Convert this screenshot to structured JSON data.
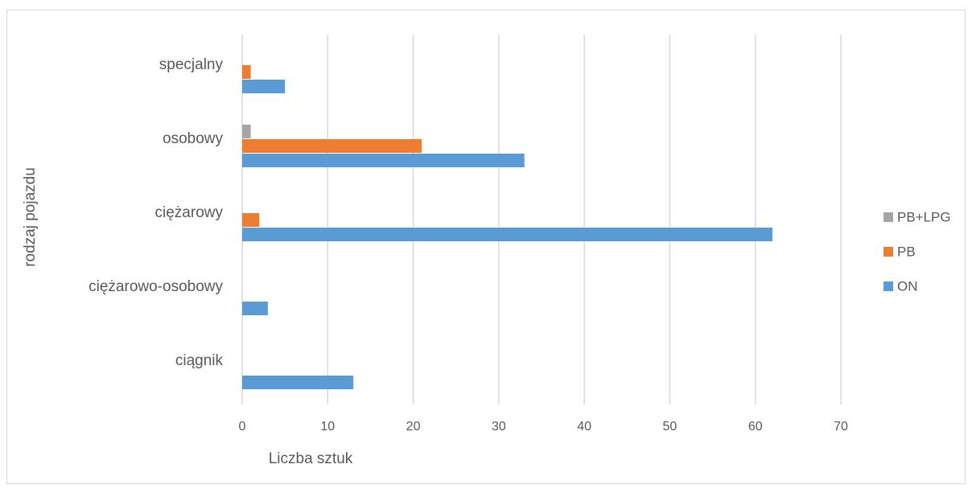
{
  "chart_data": {
    "type": "bar",
    "orientation": "horizontal",
    "title": "",
    "xlabel": "Liczba sztuk",
    "ylabel": "rodzaj pojazdu",
    "categories": [
      "ciągnik",
      "ciężarowo-osobowy",
      "ciężarowy",
      "osobowy",
      "specjalny"
    ],
    "series": [
      {
        "name": "ON",
        "color": "#5b9bd5",
        "values": [
          13,
          3,
          62,
          33,
          5
        ]
      },
      {
        "name": "PB",
        "color": "#ed7d31",
        "values": [
          0,
          0,
          2,
          21,
          1
        ]
      },
      {
        "name": "PB+LPG",
        "color": "#a5a5a5",
        "values": [
          0,
          0,
          0,
          1,
          0
        ]
      }
    ],
    "xlim": [
      0,
      70
    ],
    "xticks": [
      0,
      10,
      20,
      30,
      40,
      50,
      60,
      70
    ],
    "grid": true,
    "legend_position": "right",
    "legend_order": [
      "PB+LPG",
      "PB",
      "ON"
    ]
  }
}
